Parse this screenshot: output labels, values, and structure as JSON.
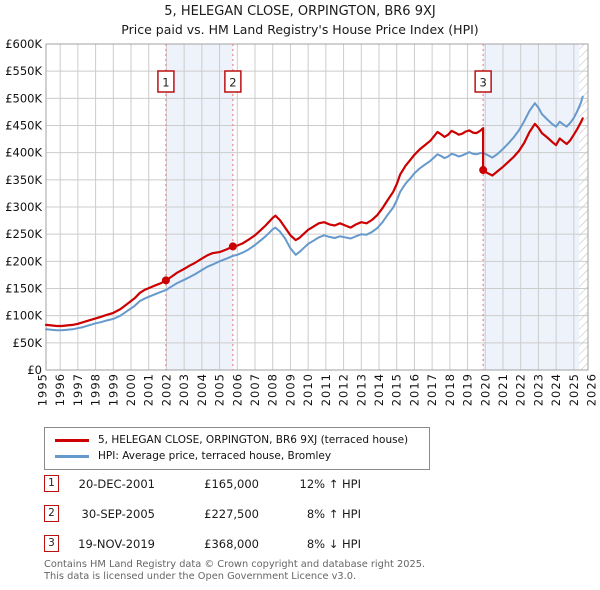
{
  "title": "5, HELEGAN CLOSE, ORPINGTON, BR6 9XJ",
  "subtitle": "Price paid vs. HM Land Registry's House Price Index (HPI)",
  "legend": [
    {
      "label": "5, HELEGAN CLOSE, ORPINGTON, BR6 9XJ (terraced house)",
      "color": "#cc0000"
    },
    {
      "label": "HPI: Average price, terraced house, Bromley",
      "color": "#6699cc"
    }
  ],
  "transactions": [
    {
      "num": "1",
      "date": "20-DEC-2001",
      "price": "£165,000",
      "hpi": "12% ↑ HPI"
    },
    {
      "num": "2",
      "date": "30-SEP-2005",
      "price": "£227,500",
      "hpi": "8% ↑ HPI"
    },
    {
      "num": "3",
      "date": "19-NOV-2019",
      "price": "£368,000",
      "hpi": "8% ↓ HPI"
    }
  ],
  "footer": [
    "Contains HM Land Registry data © Crown copyright and database right 2025.",
    "This data is licensed under the Open Government Licence v3.0."
  ],
  "colors": {
    "property_line": "#cc0000",
    "hpi_line": "#6699cc",
    "grid": "#cccccc",
    "axis": "#a0a0a0",
    "shade": "#eef3fb",
    "sale_line": "#ee8888",
    "marker_border": "#bb1111",
    "hatch_line": "#c4c4c4"
  },
  "chart_data": {
    "type": "line",
    "title": "5, HELEGAN CLOSE, ORPINGTON, BR6 9XJ",
    "subtitle": "Price paid vs. HM Land Registry's House Price Index (HPI)",
    "xlabel": "",
    "ylabel": "",
    "y_unit": "GBP thousands",
    "xlim": [
      1995.2,
      2025.8
    ],
    "ylim": [
      0,
      600
    ],
    "y_tick_step": 50,
    "y_tick_labels": [
      "£0",
      "£50K",
      "£100K",
      "£150K",
      "£200K",
      "£250K",
      "£300K",
      "£350K",
      "£400K",
      "£450K",
      "£500K",
      "£550K",
      "£600K"
    ],
    "x_ticks": [
      1995,
      1996,
      1997,
      1998,
      1999,
      2000,
      2001,
      2002,
      2003,
      2004,
      2005,
      2006,
      2007,
      2008,
      2009,
      2010,
      2011,
      2012,
      2013,
      2014,
      2015,
      2016,
      2017,
      2018,
      2019,
      2020,
      2021,
      2022,
      2023,
      2024,
      2025,
      2026
    ],
    "grid": true,
    "legend_position": "below",
    "shaded_periods": [
      [
        2001.97,
        2005.75
      ],
      [
        2019.88,
        2025.3
      ]
    ],
    "hatch_from": 2025.3,
    "sales": [
      {
        "x": 2001.97,
        "y": 165,
        "label": "1",
        "date": "20-DEC-2001",
        "price_gbp": 165000
      },
      {
        "x": 2005.75,
        "y": 227.5,
        "label": "2",
        "date": "30-SEP-2005",
        "price_gbp": 227500
      },
      {
        "x": 2019.88,
        "y": 368,
        "label": "3",
        "date": "19-NOV-2019",
        "price_gbp": 368000
      }
    ],
    "series": [
      {
        "name": "5, HELEGAN CLOSE, ORPINGTON, BR6 9XJ (terraced house)",
        "color": "#cc0000",
        "width": 2.2,
        "points": [
          [
            1995.2,
            83
          ],
          [
            1995.5,
            82
          ],
          [
            1995.8,
            81
          ],
          [
            1996.1,
            81
          ],
          [
            1996.4,
            82
          ],
          [
            1996.7,
            83
          ],
          [
            1997.0,
            85
          ],
          [
            1997.3,
            88
          ],
          [
            1997.6,
            91
          ],
          [
            1998.0,
            95
          ],
          [
            1998.3,
            98
          ],
          [
            1998.6,
            101
          ],
          [
            1999.0,
            105
          ],
          [
            1999.4,
            112
          ],
          [
            1999.8,
            122
          ],
          [
            2000.2,
            132
          ],
          [
            2000.5,
            142
          ],
          [
            2000.8,
            148
          ],
          [
            2001.1,
            152
          ],
          [
            2001.4,
            156
          ],
          [
            2001.7,
            160
          ],
          [
            2001.97,
            165
          ],
          [
            2002.3,
            172
          ],
          [
            2002.6,
            179
          ],
          [
            2003.0,
            186
          ],
          [
            2003.3,
            192
          ],
          [
            2003.6,
            197
          ],
          [
            2004.0,
            205
          ],
          [
            2004.3,
            211
          ],
          [
            2004.6,
            215
          ],
          [
            2005.0,
            217
          ],
          [
            2005.4,
            222
          ],
          [
            2005.75,
            227.5
          ],
          [
            2006.0,
            229
          ],
          [
            2006.3,
            233
          ],
          [
            2006.6,
            239
          ],
          [
            2007.0,
            248
          ],
          [
            2007.3,
            257
          ],
          [
            2007.6,
            266
          ],
          [
            2008.0,
            280
          ],
          [
            2008.15,
            284
          ],
          [
            2008.4,
            276
          ],
          [
            2008.7,
            262
          ],
          [
            2009.0,
            248
          ],
          [
            2009.3,
            239
          ],
          [
            2009.5,
            243
          ],
          [
            2009.8,
            252
          ],
          [
            2010.0,
            258
          ],
          [
            2010.3,
            264
          ],
          [
            2010.6,
            270
          ],
          [
            2010.9,
            272
          ],
          [
            2011.2,
            268
          ],
          [
            2011.5,
            266
          ],
          [
            2011.8,
            270
          ],
          [
            2012.1,
            266
          ],
          [
            2012.4,
            262
          ],
          [
            2012.7,
            268
          ],
          [
            2013.0,
            272
          ],
          [
            2013.3,
            270
          ],
          [
            2013.6,
            276
          ],
          [
            2013.9,
            285
          ],
          [
            2014.2,
            298
          ],
          [
            2014.5,
            313
          ],
          [
            2014.8,
            328
          ],
          [
            2015.0,
            342
          ],
          [
            2015.2,
            360
          ],
          [
            2015.5,
            376
          ],
          [
            2015.8,
            388
          ],
          [
            2016.0,
            396
          ],
          [
            2016.3,
            406
          ],
          [
            2016.6,
            414
          ],
          [
            2016.9,
            422
          ],
          [
            2017.1,
            430
          ],
          [
            2017.3,
            438
          ],
          [
            2017.5,
            434
          ],
          [
            2017.7,
            429
          ],
          [
            2017.9,
            433
          ],
          [
            2018.1,
            440
          ],
          [
            2018.3,
            437
          ],
          [
            2018.5,
            433
          ],
          [
            2018.7,
            435
          ],
          [
            2018.9,
            439
          ],
          [
            2019.1,
            441
          ],
          [
            2019.3,
            437
          ],
          [
            2019.5,
            436
          ],
          [
            2019.7,
            440
          ],
          [
            2019.88,
            445
          ],
          [
            2019.88,
            368
          ],
          [
            2020.1,
            363
          ],
          [
            2020.4,
            358
          ],
          [
            2020.7,
            366
          ],
          [
            2021.0,
            374
          ],
          [
            2021.3,
            383
          ],
          [
            2021.6,
            392
          ],
          [
            2021.9,
            403
          ],
          [
            2022.2,
            418
          ],
          [
            2022.5,
            438
          ],
          [
            2022.8,
            453
          ],
          [
            2023.0,
            446
          ],
          [
            2023.2,
            436
          ],
          [
            2023.5,
            428
          ],
          [
            2023.8,
            419
          ],
          [
            2024.0,
            414
          ],
          [
            2024.2,
            426
          ],
          [
            2024.4,
            421
          ],
          [
            2024.6,
            416
          ],
          [
            2024.8,
            423
          ],
          [
            2025.0,
            433
          ],
          [
            2025.2,
            444
          ],
          [
            2025.4,
            456
          ],
          [
            2025.5,
            463
          ]
        ]
      },
      {
        "name": "HPI: Average price, terraced house, Bromley",
        "color": "#6699cc",
        "width": 2,
        "points": [
          [
            1995.2,
            75
          ],
          [
            1995.5,
            74
          ],
          [
            1995.8,
            73
          ],
          [
            1996.1,
            73
          ],
          [
            1996.4,
            74
          ],
          [
            1996.7,
            75
          ],
          [
            1997.0,
            77
          ],
          [
            1997.3,
            79
          ],
          [
            1997.6,
            82
          ],
          [
            1998.0,
            86
          ],
          [
            1998.3,
            88
          ],
          [
            1998.6,
            91
          ],
          [
            1999.0,
            94
          ],
          [
            1999.4,
            100
          ],
          [
            1999.8,
            109
          ],
          [
            2000.2,
            118
          ],
          [
            2000.5,
            127
          ],
          [
            2000.8,
            132
          ],
          [
            2001.1,
            136
          ],
          [
            2001.4,
            140
          ],
          [
            2001.7,
            144
          ],
          [
            2001.97,
            147
          ],
          [
            2002.3,
            154
          ],
          [
            2002.6,
            160
          ],
          [
            2003.0,
            166
          ],
          [
            2003.3,
            171
          ],
          [
            2003.6,
            176
          ],
          [
            2004.0,
            184
          ],
          [
            2004.3,
            190
          ],
          [
            2004.6,
            194
          ],
          [
            2005.0,
            200
          ],
          [
            2005.4,
            205
          ],
          [
            2005.75,
            210
          ],
          [
            2006.0,
            212
          ],
          [
            2006.3,
            216
          ],
          [
            2006.6,
            221
          ],
          [
            2007.0,
            230
          ],
          [
            2007.3,
            238
          ],
          [
            2007.6,
            246
          ],
          [
            2008.0,
            259
          ],
          [
            2008.15,
            262
          ],
          [
            2008.4,
            255
          ],
          [
            2008.7,
            242
          ],
          [
            2009.0,
            224
          ],
          [
            2009.3,
            212
          ],
          [
            2009.5,
            217
          ],
          [
            2009.8,
            226
          ],
          [
            2010.0,
            232
          ],
          [
            2010.3,
            238
          ],
          [
            2010.6,
            244
          ],
          [
            2010.9,
            248
          ],
          [
            2011.2,
            245
          ],
          [
            2011.5,
            243
          ],
          [
            2011.8,
            246
          ],
          [
            2012.1,
            244
          ],
          [
            2012.4,
            242
          ],
          [
            2012.7,
            246
          ],
          [
            2013.0,
            250
          ],
          [
            2013.3,
            249
          ],
          [
            2013.6,
            254
          ],
          [
            2013.9,
            261
          ],
          [
            2014.2,
            272
          ],
          [
            2014.5,
            286
          ],
          [
            2014.8,
            299
          ],
          [
            2015.0,
            312
          ],
          [
            2015.2,
            328
          ],
          [
            2015.5,
            343
          ],
          [
            2015.8,
            354
          ],
          [
            2016.0,
            362
          ],
          [
            2016.3,
            371
          ],
          [
            2016.6,
            378
          ],
          [
            2016.9,
            385
          ],
          [
            2017.1,
            391
          ],
          [
            2017.3,
            397
          ],
          [
            2017.5,
            394
          ],
          [
            2017.7,
            390
          ],
          [
            2017.9,
            393
          ],
          [
            2018.1,
            398
          ],
          [
            2018.3,
            396
          ],
          [
            2018.5,
            393
          ],
          [
            2018.7,
            395
          ],
          [
            2018.9,
            398
          ],
          [
            2019.1,
            401
          ],
          [
            2019.3,
            398
          ],
          [
            2019.5,
            397
          ],
          [
            2019.7,
            399
          ],
          [
            2019.88,
            400
          ],
          [
            2020.1,
            396
          ],
          [
            2020.4,
            391
          ],
          [
            2020.7,
            398
          ],
          [
            2021.0,
            407
          ],
          [
            2021.3,
            417
          ],
          [
            2021.6,
            428
          ],
          [
            2021.9,
            441
          ],
          [
            2022.2,
            458
          ],
          [
            2022.5,
            477
          ],
          [
            2022.8,
            491
          ],
          [
            2023.0,
            483
          ],
          [
            2023.2,
            471
          ],
          [
            2023.5,
            461
          ],
          [
            2023.8,
            452
          ],
          [
            2024.0,
            448
          ],
          [
            2024.2,
            457
          ],
          [
            2024.4,
            452
          ],
          [
            2024.6,
            448
          ],
          [
            2024.8,
            455
          ],
          [
            2025.0,
            464
          ],
          [
            2025.2,
            477
          ],
          [
            2025.4,
            492
          ],
          [
            2025.5,
            503
          ]
        ]
      }
    ]
  }
}
